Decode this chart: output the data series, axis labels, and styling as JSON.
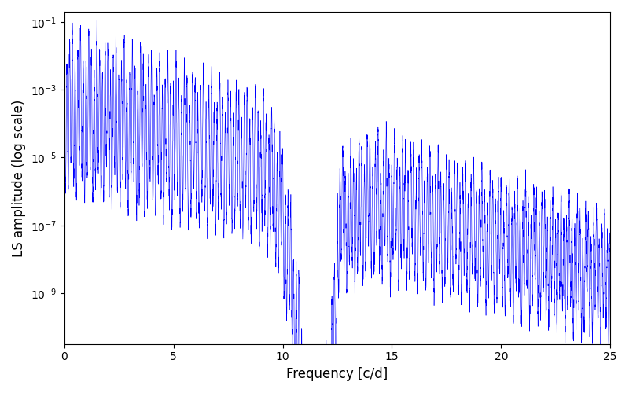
{
  "xlabel": "Frequency [c/d]",
  "ylabel": "LS amplitude (log scale)",
  "line_color": "#0000ff",
  "xlim": [
    0,
    25
  ],
  "ylim_log_min": -10.5,
  "ylim_log_max": -0.7,
  "xticks": [
    0,
    5,
    10,
    15,
    20,
    25
  ],
  "figsize": [
    8.0,
    5.0
  ],
  "dpi": 100,
  "background_color": "#ffffff",
  "freq_max": 25.0,
  "n_points": 8000,
  "seed": 42,
  "line_width": 0.4
}
